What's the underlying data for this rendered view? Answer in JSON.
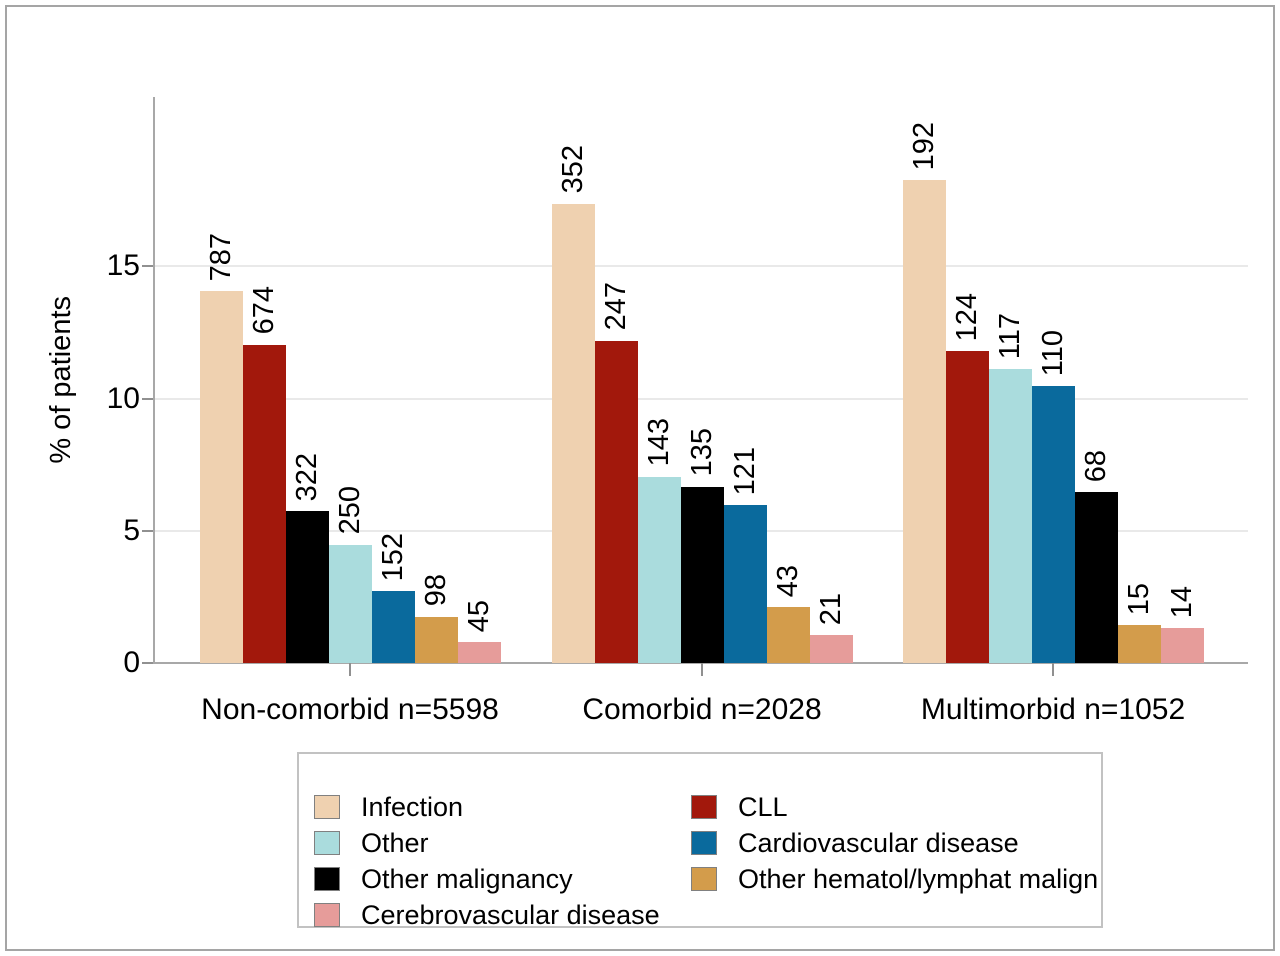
{
  "chart_data": {
    "type": "bar",
    "title": "",
    "ylabel": "% of patients",
    "xlabel": "",
    "ylim": [
      0,
      21.4
    ],
    "yticks": [
      0,
      5,
      10,
      15
    ],
    "grid": "horizontal",
    "legend_position": "bottom-box-two-columns",
    "colors": {
      "Infection": "#EFD1B0",
      "CLL": "#A2180C",
      "Other": "#AADCDD",
      "Cardiovascular disease": "#0A6A9D",
      "Other malignancy": "#000000",
      "Other hematol/lymphat malign": "#D39C4B",
      "Cerebrovascular disease": "#E69C9A"
    },
    "groups": [
      {
        "label": "Non-comorbid n=5598",
        "n": 5598,
        "bars": [
          {
            "cause": "Infection",
            "count": 787,
            "pct": 14.06
          },
          {
            "cause": "CLL",
            "count": 674,
            "pct": 12.04
          },
          {
            "cause": "Other malignancy",
            "count": 322,
            "pct": 5.75
          },
          {
            "cause": "Other",
            "count": 250,
            "pct": 4.47
          },
          {
            "cause": "Cardiovascular disease",
            "count": 152,
            "pct": 2.72
          },
          {
            "cause": "Other hematol/lymphat malign",
            "count": 98,
            "pct": 1.75
          },
          {
            "cause": "Cerebrovascular disease",
            "count": 45,
            "pct": 0.8
          }
        ]
      },
      {
        "label": "Comorbid n=2028",
        "n": 2028,
        "bars": [
          {
            "cause": "Infection",
            "count": 352,
            "pct": 17.36
          },
          {
            "cause": "CLL",
            "count": 247,
            "pct": 12.18
          },
          {
            "cause": "Other",
            "count": 143,
            "pct": 7.05
          },
          {
            "cause": "Other malignancy",
            "count": 135,
            "pct": 6.66
          },
          {
            "cause": "Cardiovascular disease",
            "count": 121,
            "pct": 5.97
          },
          {
            "cause": "Other hematol/lymphat malign",
            "count": 43,
            "pct": 2.12
          },
          {
            "cause": "Cerebrovascular disease",
            "count": 21,
            "pct": 1.04
          }
        ]
      },
      {
        "label": "Multimorbid n=1052",
        "n": 1052,
        "bars": [
          {
            "cause": "Infection",
            "count": 192,
            "pct": 18.25
          },
          {
            "cause": "CLL",
            "count": 124,
            "pct": 11.79
          },
          {
            "cause": "Other",
            "count": 117,
            "pct": 11.12
          },
          {
            "cause": "Cardiovascular disease",
            "count": 110,
            "pct": 10.46
          },
          {
            "cause": "Other malignancy",
            "count": 68,
            "pct": 6.46
          },
          {
            "cause": "Other hematol/lymphat malign",
            "count": 15,
            "pct": 1.43
          },
          {
            "cause": "Cerebrovascular disease",
            "count": 14,
            "pct": 1.33
          }
        ]
      }
    ],
    "legend_columns": [
      [
        "Infection",
        "Other",
        "Other malignancy",
        "Cerebrovascular disease"
      ],
      [
        "CLL",
        "Cardiovascular disease",
        "Other hematol/lymphat malign"
      ]
    ]
  }
}
